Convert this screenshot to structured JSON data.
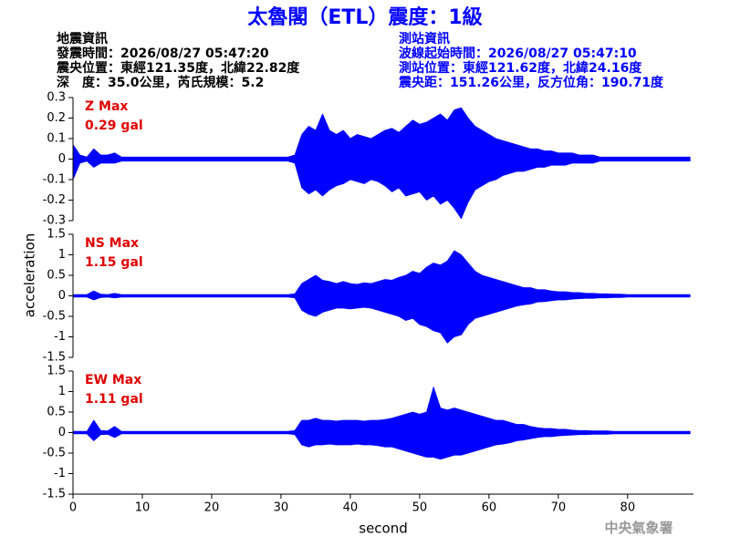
{
  "title": "太魯閣（ETL）震度：1級",
  "header": {
    "left": [
      "地震資訊",
      "發震時間：2026/08/27 05:47:20",
      "震央位置：東經121.35度，北緯22.82度",
      "深　度：35.0公里，芮氏規模：5.2"
    ],
    "right": [
      "測站資訊",
      "波線起始時間：2026/08/27 05:47:10",
      "測站位置：東經121.62度，北緯24.16度",
      "震央距：151.26公里，反方位角：190.71度"
    ]
  },
  "ylabel": "acceleration",
  "footer": "中央氣象署",
  "chart_data": [
    {
      "type": "area",
      "label": "Z Max",
      "max_label": "0.29 gal",
      "color": "#0000ff",
      "xlim": [
        0,
        89.5
      ],
      "ylim": [
        -0.3,
        0.3
      ],
      "yticks": [
        -0.3,
        -0.2,
        -0.1,
        0,
        0.1,
        0.2,
        0.3
      ],
      "x": [
        0,
        1,
        2,
        3,
        4,
        5,
        6,
        7,
        8,
        9,
        10,
        11,
        12,
        13,
        14,
        15,
        16,
        17,
        18,
        19,
        20,
        21,
        22,
        23,
        24,
        25,
        26,
        27,
        28,
        29,
        30,
        31,
        32,
        33,
        34,
        35,
        36,
        37,
        38,
        39,
        40,
        41,
        42,
        43,
        44,
        45,
        46,
        47,
        48,
        49,
        50,
        51,
        52,
        53,
        54,
        55,
        56,
        57,
        58,
        59,
        60,
        61,
        62,
        63,
        64,
        65,
        66,
        67,
        68,
        69,
        70,
        71,
        72,
        73,
        74,
        75,
        76,
        77,
        78,
        79,
        80,
        81,
        82,
        83,
        84,
        85,
        86,
        87,
        88,
        89
      ],
      "upper": [
        0.07,
        0.02,
        0.01,
        0.05,
        0.02,
        0.02,
        0.03,
        0.01,
        0.01,
        0.01,
        0.01,
        0.01,
        0.01,
        0.01,
        0.01,
        0.01,
        0.01,
        0.01,
        0.01,
        0.01,
        0.01,
        0.01,
        0.01,
        0.01,
        0.01,
        0.01,
        0.01,
        0.01,
        0.01,
        0.01,
        0.01,
        0.01,
        0.02,
        0.12,
        0.16,
        0.14,
        0.22,
        0.14,
        0.12,
        0.14,
        0.1,
        0.12,
        0.11,
        0.1,
        0.12,
        0.14,
        0.15,
        0.13,
        0.16,
        0.19,
        0.17,
        0.18,
        0.2,
        0.22,
        0.19,
        0.24,
        0.25,
        0.2,
        0.16,
        0.14,
        0.12,
        0.1,
        0.09,
        0.08,
        0.07,
        0.06,
        0.05,
        0.05,
        0.04,
        0.04,
        0.03,
        0.03,
        0.03,
        0.02,
        0.02,
        0.02,
        0.01,
        0.01,
        0.01,
        0.01,
        0.01,
        0.01,
        0.01,
        0.01,
        0.01,
        0.01,
        0.01,
        0.01,
        0.01,
        0.01
      ],
      "lower": [
        -0.1,
        -0.02,
        -0.01,
        -0.04,
        -0.02,
        -0.02,
        -0.02,
        -0.01,
        -0.01,
        -0.01,
        -0.01,
        -0.01,
        -0.01,
        -0.01,
        -0.01,
        -0.01,
        -0.01,
        -0.01,
        -0.01,
        -0.01,
        -0.01,
        -0.01,
        -0.01,
        -0.01,
        -0.01,
        -0.01,
        -0.01,
        -0.01,
        -0.01,
        -0.01,
        -0.01,
        -0.01,
        -0.02,
        -0.14,
        -0.17,
        -0.15,
        -0.18,
        -0.15,
        -0.13,
        -0.12,
        -0.1,
        -0.11,
        -0.12,
        -0.1,
        -0.11,
        -0.13,
        -0.16,
        -0.14,
        -0.18,
        -0.17,
        -0.16,
        -0.2,
        -0.18,
        -0.22,
        -0.2,
        -0.24,
        -0.29,
        -0.21,
        -0.15,
        -0.13,
        -0.11,
        -0.1,
        -0.08,
        -0.07,
        -0.06,
        -0.06,
        -0.05,
        -0.04,
        -0.04,
        -0.03,
        -0.03,
        -0.03,
        -0.02,
        -0.02,
        -0.02,
        -0.02,
        -0.01,
        -0.01,
        -0.01,
        -0.01,
        -0.01,
        -0.01,
        -0.01,
        -0.01,
        -0.01,
        -0.01,
        -0.01,
        -0.01,
        -0.01,
        -0.01
      ]
    },
    {
      "type": "area",
      "label": "NS Max",
      "max_label": "1.15 gal",
      "color": "#0000ff",
      "xlim": [
        0,
        89.5
      ],
      "ylim": [
        -1.5,
        1.5
      ],
      "yticks": [
        -1.5,
        -1,
        -0.5,
        0,
        0.5,
        1,
        1.5
      ],
      "x": [
        0,
        1,
        2,
        3,
        4,
        5,
        6,
        7,
        8,
        9,
        10,
        11,
        12,
        13,
        14,
        15,
        16,
        17,
        18,
        19,
        20,
        21,
        22,
        23,
        24,
        25,
        26,
        27,
        28,
        29,
        30,
        31,
        32,
        33,
        34,
        35,
        36,
        37,
        38,
        39,
        40,
        41,
        42,
        43,
        44,
        45,
        46,
        47,
        48,
        49,
        50,
        51,
        52,
        53,
        54,
        55,
        56,
        57,
        58,
        59,
        60,
        61,
        62,
        63,
        64,
        65,
        66,
        67,
        68,
        69,
        70,
        71,
        72,
        73,
        74,
        75,
        76,
        77,
        78,
        79,
        80,
        81,
        82,
        83,
        84,
        85,
        86,
        87,
        88,
        89
      ],
      "upper": [
        0.03,
        0.03,
        0.03,
        0.12,
        0.04,
        0.03,
        0.06,
        0.03,
        0.03,
        0.03,
        0.03,
        0.03,
        0.03,
        0.03,
        0.03,
        0.03,
        0.03,
        0.03,
        0.03,
        0.03,
        0.03,
        0.03,
        0.03,
        0.03,
        0.03,
        0.03,
        0.03,
        0.03,
        0.03,
        0.03,
        0.03,
        0.03,
        0.05,
        0.3,
        0.4,
        0.5,
        0.38,
        0.35,
        0.3,
        0.35,
        0.3,
        0.28,
        0.32,
        0.3,
        0.35,
        0.4,
        0.38,
        0.45,
        0.5,
        0.6,
        0.55,
        0.7,
        0.8,
        0.75,
        0.85,
        1.1,
        1.0,
        0.8,
        0.6,
        0.5,
        0.45,
        0.4,
        0.35,
        0.3,
        0.25,
        0.2,
        0.2,
        0.15,
        0.15,
        0.12,
        0.1,
        0.1,
        0.08,
        0.08,
        0.06,
        0.06,
        0.05,
        0.05,
        0.04,
        0.04,
        0.03,
        0.03,
        0.03,
        0.03,
        0.03,
        0.03,
        0.03,
        0.03,
        0.03,
        0.03
      ],
      "lower": [
        -0.03,
        -0.03,
        -0.03,
        -0.1,
        -0.04,
        -0.03,
        -0.05,
        -0.03,
        -0.03,
        -0.03,
        -0.03,
        -0.03,
        -0.03,
        -0.03,
        -0.03,
        -0.03,
        -0.03,
        -0.03,
        -0.03,
        -0.03,
        -0.03,
        -0.03,
        -0.03,
        -0.03,
        -0.03,
        -0.03,
        -0.03,
        -0.03,
        -0.03,
        -0.03,
        -0.03,
        -0.03,
        -0.05,
        -0.35,
        -0.45,
        -0.5,
        -0.4,
        -0.35,
        -0.3,
        -0.3,
        -0.32,
        -0.3,
        -0.28,
        -0.3,
        -0.35,
        -0.4,
        -0.45,
        -0.5,
        -0.6,
        -0.55,
        -0.7,
        -0.75,
        -0.85,
        -0.9,
        -1.15,
        -1.0,
        -0.95,
        -0.7,
        -0.55,
        -0.5,
        -0.45,
        -0.4,
        -0.35,
        -0.3,
        -0.25,
        -0.22,
        -0.2,
        -0.15,
        -0.14,
        -0.12,
        -0.1,
        -0.1,
        -0.08,
        -0.07,
        -0.06,
        -0.06,
        -0.05,
        -0.05,
        -0.04,
        -0.04,
        -0.03,
        -0.03,
        -0.03,
        -0.03,
        -0.03,
        -0.03,
        -0.03,
        -0.03,
        -0.03,
        -0.03
      ]
    },
    {
      "type": "area",
      "label": "EW Max",
      "max_label": "1.11 gal",
      "color": "#0000ff",
      "xlim": [
        0,
        89.5
      ],
      "ylim": [
        -1.5,
        1.5
      ],
      "yticks": [
        -1.5,
        -1,
        -0.5,
        0,
        0.5,
        1,
        1.5
      ],
      "xticks": [
        0,
        10,
        20,
        30,
        40,
        50,
        60,
        70,
        80
      ],
      "xlabel": "second",
      "x": [
        0,
        1,
        2,
        3,
        4,
        5,
        6,
        7,
        8,
        9,
        10,
        11,
        12,
        13,
        14,
        15,
        16,
        17,
        18,
        19,
        20,
        21,
        22,
        23,
        24,
        25,
        26,
        27,
        28,
        29,
        30,
        31,
        32,
        33,
        34,
        35,
        36,
        37,
        38,
        39,
        40,
        41,
        42,
        43,
        44,
        45,
        46,
        47,
        48,
        49,
        50,
        51,
        52,
        53,
        54,
        55,
        56,
        57,
        58,
        59,
        60,
        61,
        62,
        63,
        64,
        65,
        66,
        67,
        68,
        69,
        70,
        71,
        72,
        73,
        74,
        75,
        76,
        77,
        78,
        79,
        80,
        81,
        82,
        83,
        84,
        85,
        86,
        87,
        88,
        89
      ],
      "upper": [
        0.03,
        0.03,
        0.03,
        0.3,
        0.05,
        0.04,
        0.15,
        0.03,
        0.03,
        0.03,
        0.03,
        0.03,
        0.03,
        0.03,
        0.03,
        0.03,
        0.03,
        0.03,
        0.03,
        0.03,
        0.03,
        0.03,
        0.03,
        0.03,
        0.03,
        0.03,
        0.03,
        0.03,
        0.03,
        0.03,
        0.03,
        0.03,
        0.05,
        0.3,
        0.3,
        0.35,
        0.3,
        0.3,
        0.28,
        0.3,
        0.3,
        0.3,
        0.28,
        0.3,
        0.3,
        0.32,
        0.35,
        0.4,
        0.45,
        0.5,
        0.45,
        0.5,
        1.11,
        0.6,
        0.55,
        0.6,
        0.55,
        0.5,
        0.45,
        0.4,
        0.35,
        0.3,
        0.3,
        0.25,
        0.2,
        0.2,
        0.15,
        0.12,
        0.1,
        0.1,
        0.08,
        0.08,
        0.06,
        0.05,
        0.05,
        0.04,
        0.04,
        0.04,
        0.03,
        0.03,
        0.03,
        0.03,
        0.03,
        0.03,
        0.03,
        0.03,
        0.03,
        0.03,
        0.03,
        0.03
      ],
      "lower": [
        -0.03,
        -0.03,
        -0.03,
        -0.2,
        -0.05,
        -0.04,
        -0.12,
        -0.03,
        -0.03,
        -0.03,
        -0.03,
        -0.03,
        -0.03,
        -0.03,
        -0.03,
        -0.03,
        -0.03,
        -0.03,
        -0.03,
        -0.03,
        -0.03,
        -0.03,
        -0.03,
        -0.03,
        -0.03,
        -0.03,
        -0.03,
        -0.03,
        -0.03,
        -0.03,
        -0.03,
        -0.03,
        -0.05,
        -0.3,
        -0.35,
        -0.3,
        -0.3,
        -0.28,
        -0.3,
        -0.3,
        -0.3,
        -0.28,
        -0.3,
        -0.3,
        -0.32,
        -0.35,
        -0.35,
        -0.4,
        -0.45,
        -0.5,
        -0.55,
        -0.6,
        -0.6,
        -0.65,
        -0.6,
        -0.55,
        -0.55,
        -0.5,
        -0.45,
        -0.4,
        -0.35,
        -0.3,
        -0.28,
        -0.25,
        -0.2,
        -0.18,
        -0.15,
        -0.12,
        -0.1,
        -0.1,
        -0.08,
        -0.07,
        -0.06,
        -0.05,
        -0.05,
        -0.04,
        -0.04,
        -0.04,
        -0.03,
        -0.03,
        -0.03,
        -0.03,
        -0.03,
        -0.03,
        -0.03,
        -0.03,
        -0.03,
        -0.03,
        -0.03,
        -0.03
      ]
    }
  ]
}
